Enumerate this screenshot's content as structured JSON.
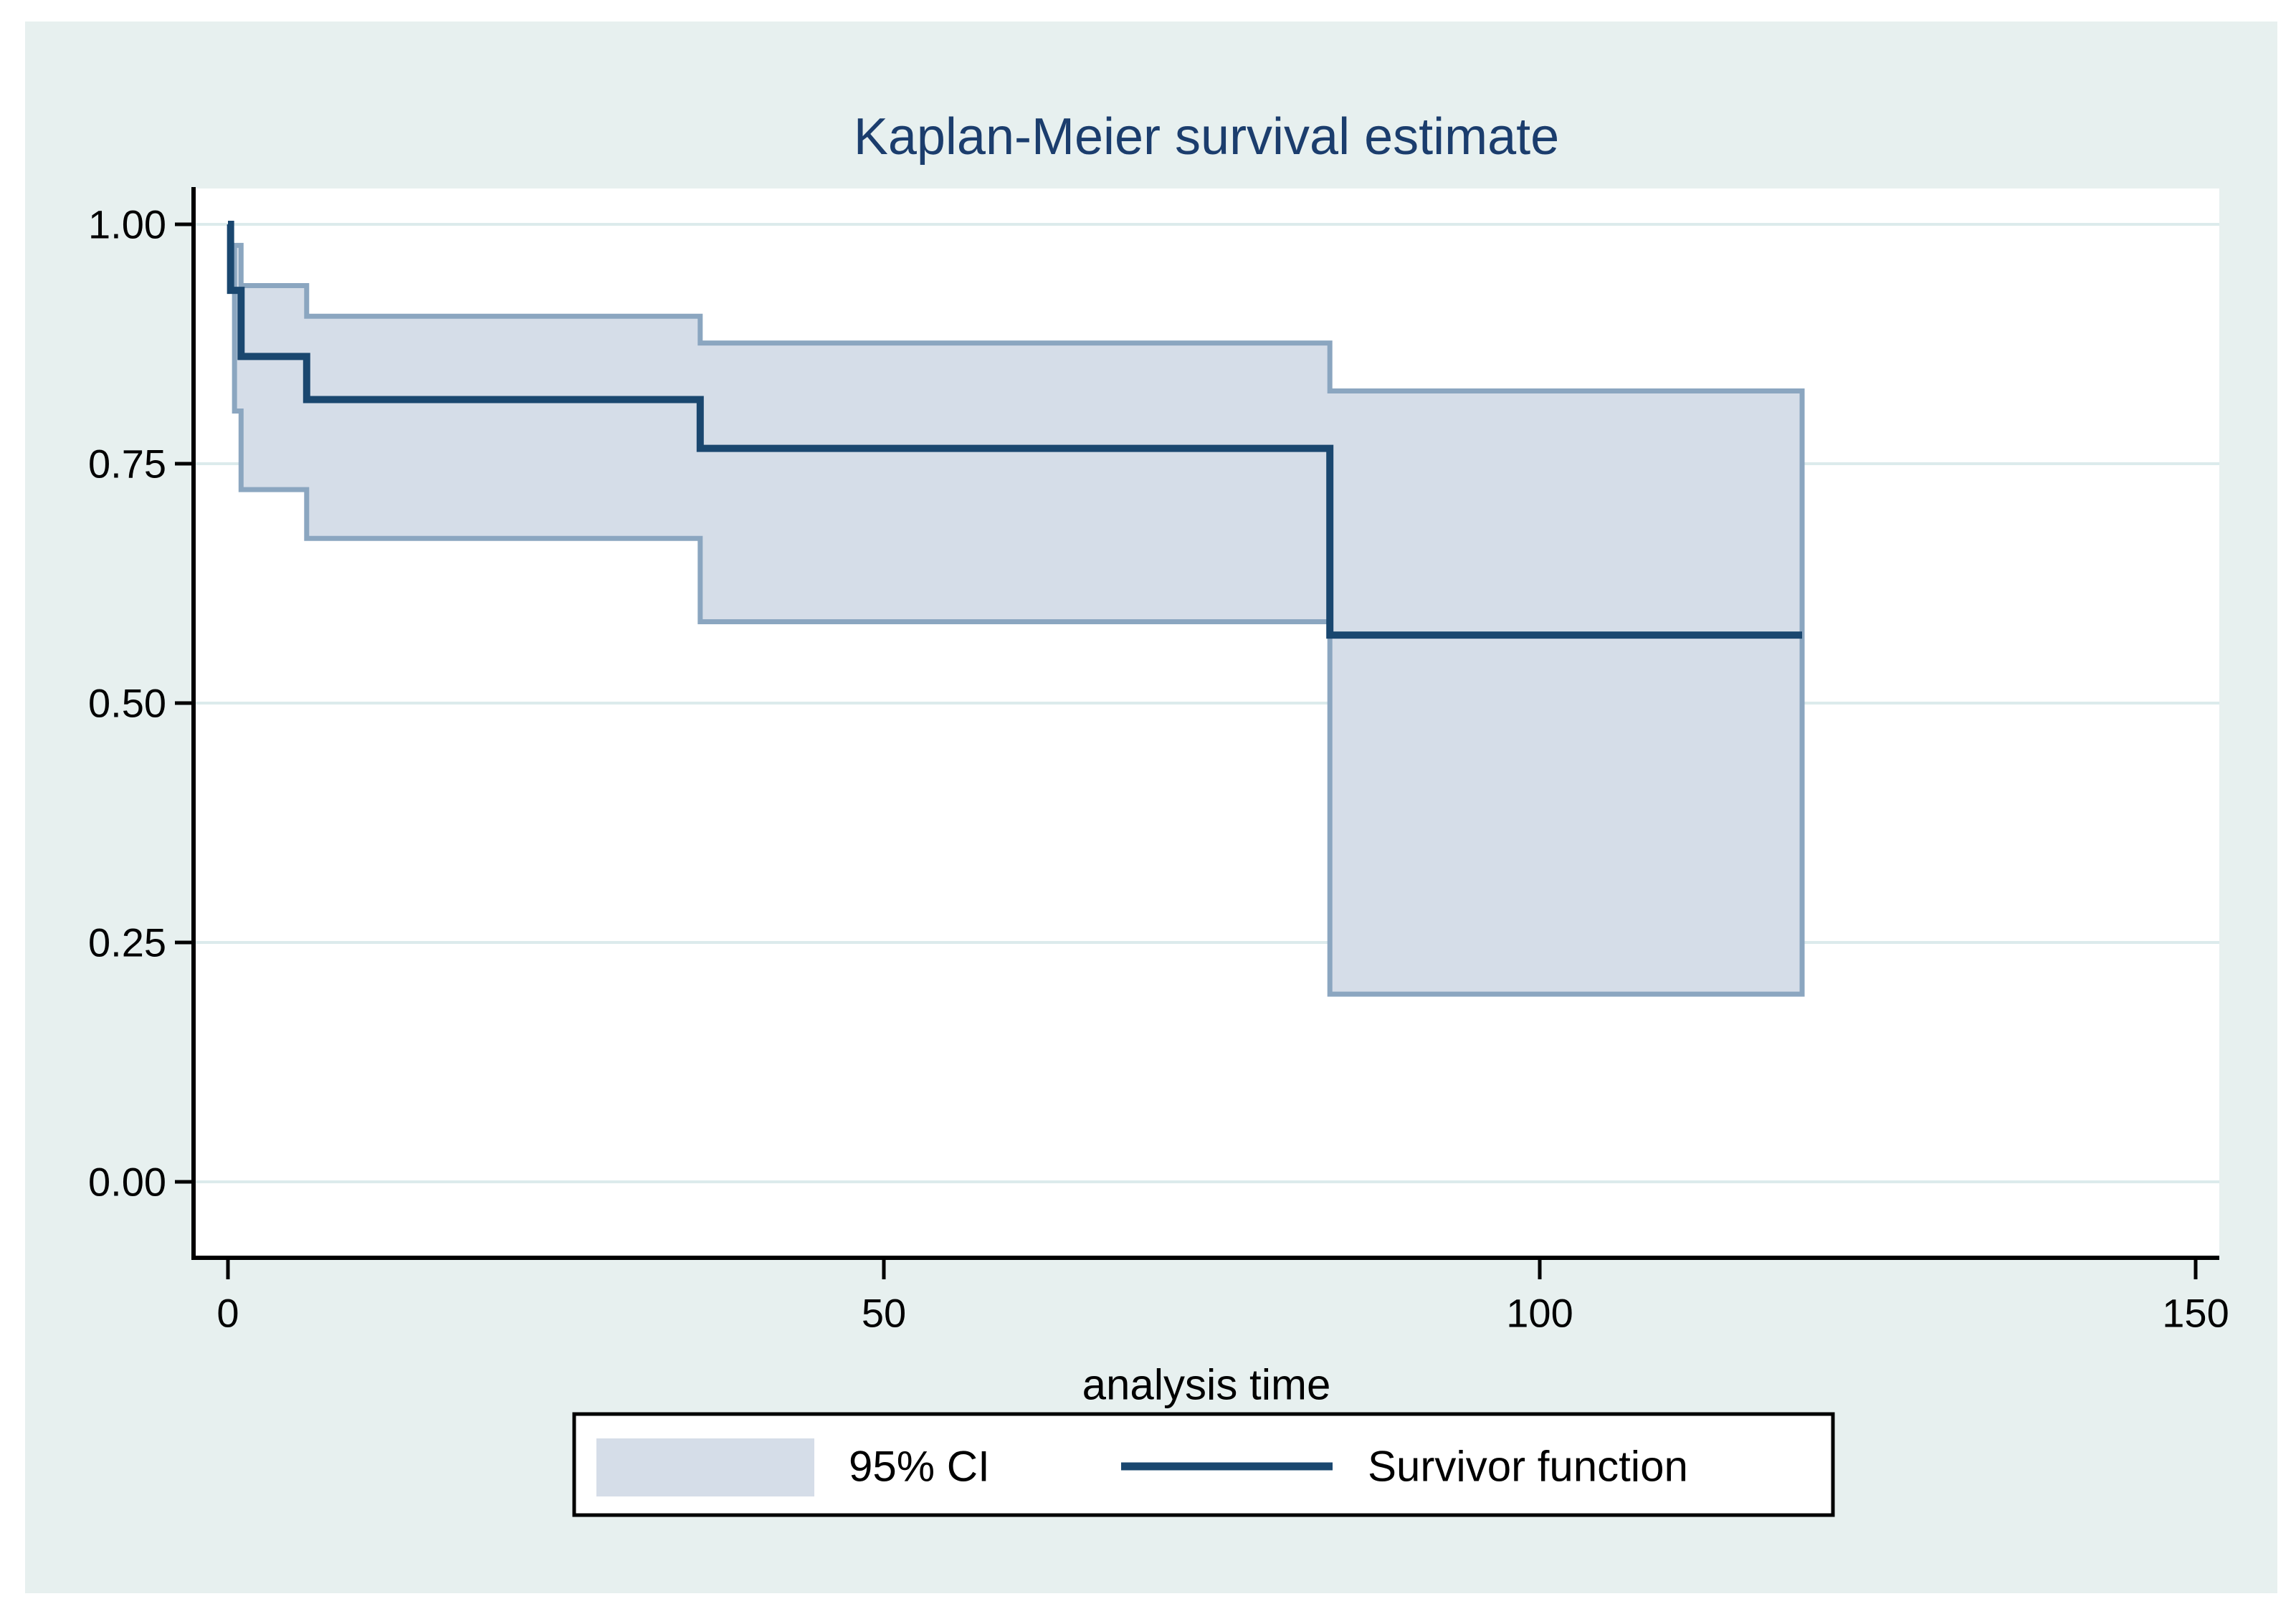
{
  "figure": {
    "kind": "stata-graph",
    "title": "Kaplan-Meier survival estimate"
  },
  "colors": {
    "page_margin": "#ffffff",
    "panel_background": "#e7f0ef",
    "plot_background": "#ffffff",
    "gridline": "#dcebec",
    "axis": "#000000",
    "text": "#000000",
    "title": "#1b3d6d",
    "survivor_line": "#1a476f",
    "ci_fill": "#d5dde8",
    "ci_edge": "#8ba6c0",
    "legend_background": "#ffffff",
    "legend_border": "#000000"
  },
  "chart_data": {
    "type": "line",
    "subtype": "kaplan-meier-step",
    "title": "Kaplan-Meier survival estimate",
    "xlabel": "analysis time",
    "ylabel": "",
    "xlim": [
      0,
      150
    ],
    "ylim": [
      0.0,
      1.0
    ],
    "grid": true,
    "x_ticks": [
      {
        "value": 0,
        "label": "0"
      },
      {
        "value": 50,
        "label": "50"
      },
      {
        "value": 100,
        "label": "100"
      },
      {
        "value": 150,
        "label": "150"
      }
    ],
    "y_ticks": [
      {
        "value": 1.0,
        "label": "1.00"
      },
      {
        "value": 0.75,
        "label": "0.75"
      },
      {
        "value": 0.5,
        "label": "0.50"
      },
      {
        "value": 0.25,
        "label": "0.25"
      },
      {
        "value": 0.0,
        "label": "0.00"
      }
    ],
    "series": [
      {
        "name": "Survivor function",
        "type": "step",
        "points": [
          [
            0,
            1.0
          ],
          [
            0.2,
            1.0
          ],
          [
            0.2,
            0.931
          ],
          [
            1,
            0.931
          ],
          [
            1,
            0.862
          ],
          [
            6,
            0.862
          ],
          [
            6,
            0.817
          ],
          [
            36,
            0.817
          ],
          [
            36,
            0.766
          ],
          [
            84,
            0.766
          ],
          [
            84,
            0.571
          ],
          [
            120,
            0.571
          ]
        ]
      },
      {
        "name": "95% CI",
        "type": "step-band",
        "segments": [
          {
            "t0": 0.5,
            "t1": 1,
            "upper": 0.978,
            "lower": 0.805
          },
          {
            "t0": 1,
            "t1": 6,
            "upper": 0.936,
            "lower": 0.723
          },
          {
            "t0": 6,
            "t1": 36,
            "upper": 0.904,
            "lower": 0.672
          },
          {
            "t0": 36,
            "t1": 84,
            "upper": 0.876,
            "lower": 0.585
          },
          {
            "t0": 84,
            "t1": 120,
            "upper": 0.826,
            "lower": 0.196
          }
        ]
      }
    ],
    "legend": {
      "position": "bottom-center",
      "items": [
        {
          "label": "95% CI",
          "swatch": "area"
        },
        {
          "label": "Survivor function",
          "swatch": "line"
        }
      ]
    }
  }
}
